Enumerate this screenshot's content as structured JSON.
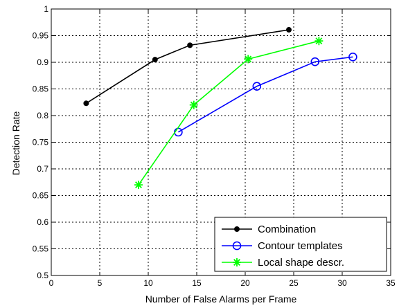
{
  "chart_data": {
    "type": "line",
    "title": "",
    "xlabel": "Number of False Alarms per Frame",
    "ylabel": "Detection Rate",
    "xlim": [
      0,
      35
    ],
    "ylim": [
      0.5,
      1
    ],
    "xticks": [
      0,
      5,
      10,
      15,
      20,
      25,
      30,
      35
    ],
    "yticks": [
      0.5,
      0.55,
      0.6,
      0.65,
      0.7,
      0.75,
      0.8,
      0.85,
      0.9,
      0.95,
      1
    ],
    "xtick_labels": [
      "0",
      "5",
      "10",
      "15",
      "20",
      "25",
      "30",
      "35"
    ],
    "ytick_labels": [
      "0.5",
      "0.55",
      "0.6",
      "0.65",
      "0.7",
      "0.75",
      "0.8",
      "0.85",
      "0.9",
      "0.95",
      "1"
    ],
    "grid": true,
    "legend_position": "bottom-right",
    "series": [
      {
        "name": "Combination",
        "color": "#000000",
        "marker": "dot",
        "x": [
          3.6,
          10.7,
          14.3,
          24.5
        ],
        "y": [
          0.823,
          0.905,
          0.932,
          0.961
        ]
      },
      {
        "name": "Contour templates",
        "color": "#0000ff",
        "marker": "circle",
        "x": [
          13.1,
          21.2,
          27.2,
          31.1
        ],
        "y": [
          0.769,
          0.855,
          0.901,
          0.91
        ]
      },
      {
        "name": "Local shape descr.",
        "color": "#00ff00",
        "marker": "star",
        "x": [
          9.0,
          14.7,
          20.3,
          27.6
        ],
        "y": [
          0.67,
          0.82,
          0.906,
          0.94
        ]
      }
    ]
  }
}
